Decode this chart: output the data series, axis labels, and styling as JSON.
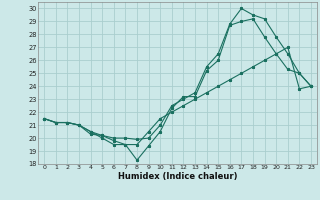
{
  "xlabel": "Humidex (Indice chaleur)",
  "bg_color": "#cce8e8",
  "grid_color": "#aacece",
  "line_color": "#1a7060",
  "xlim": [
    -0.5,
    23.5
  ],
  "ylim": [
    18,
    30.5
  ],
  "xticks": [
    0,
    1,
    2,
    3,
    4,
    5,
    6,
    7,
    8,
    9,
    10,
    11,
    12,
    13,
    14,
    15,
    16,
    17,
    18,
    19,
    20,
    21,
    22,
    23
  ],
  "yticks": [
    18,
    19,
    20,
    21,
    22,
    23,
    24,
    25,
    26,
    27,
    28,
    29,
    30
  ],
  "line1_x": [
    0,
    1,
    2,
    3,
    4,
    5,
    6,
    7,
    8,
    9,
    10,
    11,
    12,
    13,
    14,
    15,
    16,
    17,
    18,
    19,
    20,
    21,
    22,
    23
  ],
  "line1_y": [
    21.5,
    21.2,
    21.2,
    21.0,
    20.3,
    20.2,
    19.8,
    19.5,
    19.5,
    20.5,
    21.5,
    22.0,
    22.5,
    23.0,
    23.5,
    24.0,
    24.5,
    25.0,
    25.5,
    26.0,
    26.5,
    27.0,
    23.8,
    24.0
  ],
  "line2_x": [
    0,
    1,
    2,
    3,
    4,
    5,
    6,
    7,
    8,
    9,
    10,
    11,
    12,
    13,
    14,
    15,
    16,
    17,
    18,
    19,
    20,
    21,
    22,
    23
  ],
  "line2_y": [
    21.5,
    21.2,
    21.2,
    21.0,
    20.5,
    20.0,
    19.5,
    19.5,
    18.3,
    19.4,
    20.5,
    22.3,
    23.2,
    23.2,
    25.2,
    26.0,
    28.7,
    29.0,
    29.2,
    27.8,
    26.5,
    25.3,
    25.0,
    24.0
  ],
  "line3_x": [
    0,
    1,
    2,
    3,
    4,
    5,
    6,
    7,
    8,
    9,
    10,
    11,
    12,
    13,
    14,
    15,
    16,
    17,
    18,
    19,
    20,
    21,
    22,
    23
  ],
  "line3_y": [
    21.5,
    21.2,
    21.2,
    21.0,
    20.5,
    20.2,
    20.0,
    20.0,
    19.9,
    20.0,
    21.0,
    22.5,
    23.0,
    23.5,
    25.5,
    26.5,
    28.8,
    30.0,
    29.5,
    29.2,
    27.8,
    26.5,
    25.0,
    24.0
  ]
}
